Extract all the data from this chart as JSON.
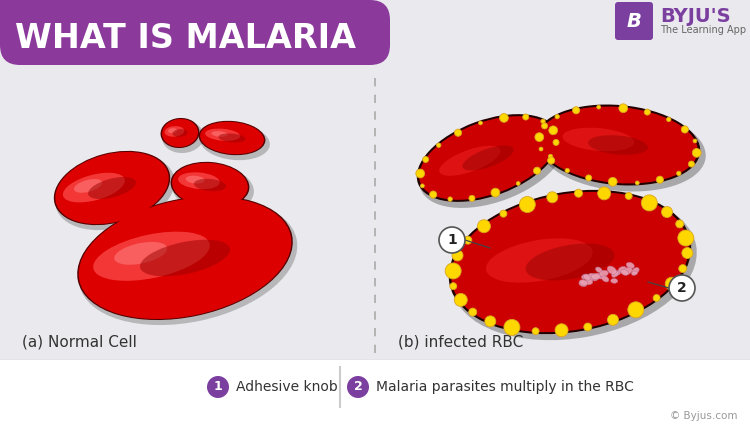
{
  "title": "WHAT IS MALARIA",
  "title_bg": "#8B3A9C",
  "title_color": "#FFFFFF",
  "bg_color": "#EAEAEE",
  "label_a": "(a) Normal Cell",
  "label_b": "(b) infected RBC",
  "legend1_text": "Adhesive knob",
  "legend2_text": "Malaria parasites multiply in the RBC",
  "legend_num_bg": "#7B3FA0",
  "rbc_red": "#CC0000",
  "rbc_light": "#FF3333",
  "rbc_dark": "#880000",
  "rbc_shadow": "#333333",
  "yellow_knob": "#FFD700",
  "yellow_dark": "#DAA520",
  "pink_parasite": "#E8A0B4",
  "pink_dark": "#C07090",
  "divider_color": "#AAAAAA",
  "copyright": "© Byjus.com",
  "byju_purple": "#7B3FA0"
}
